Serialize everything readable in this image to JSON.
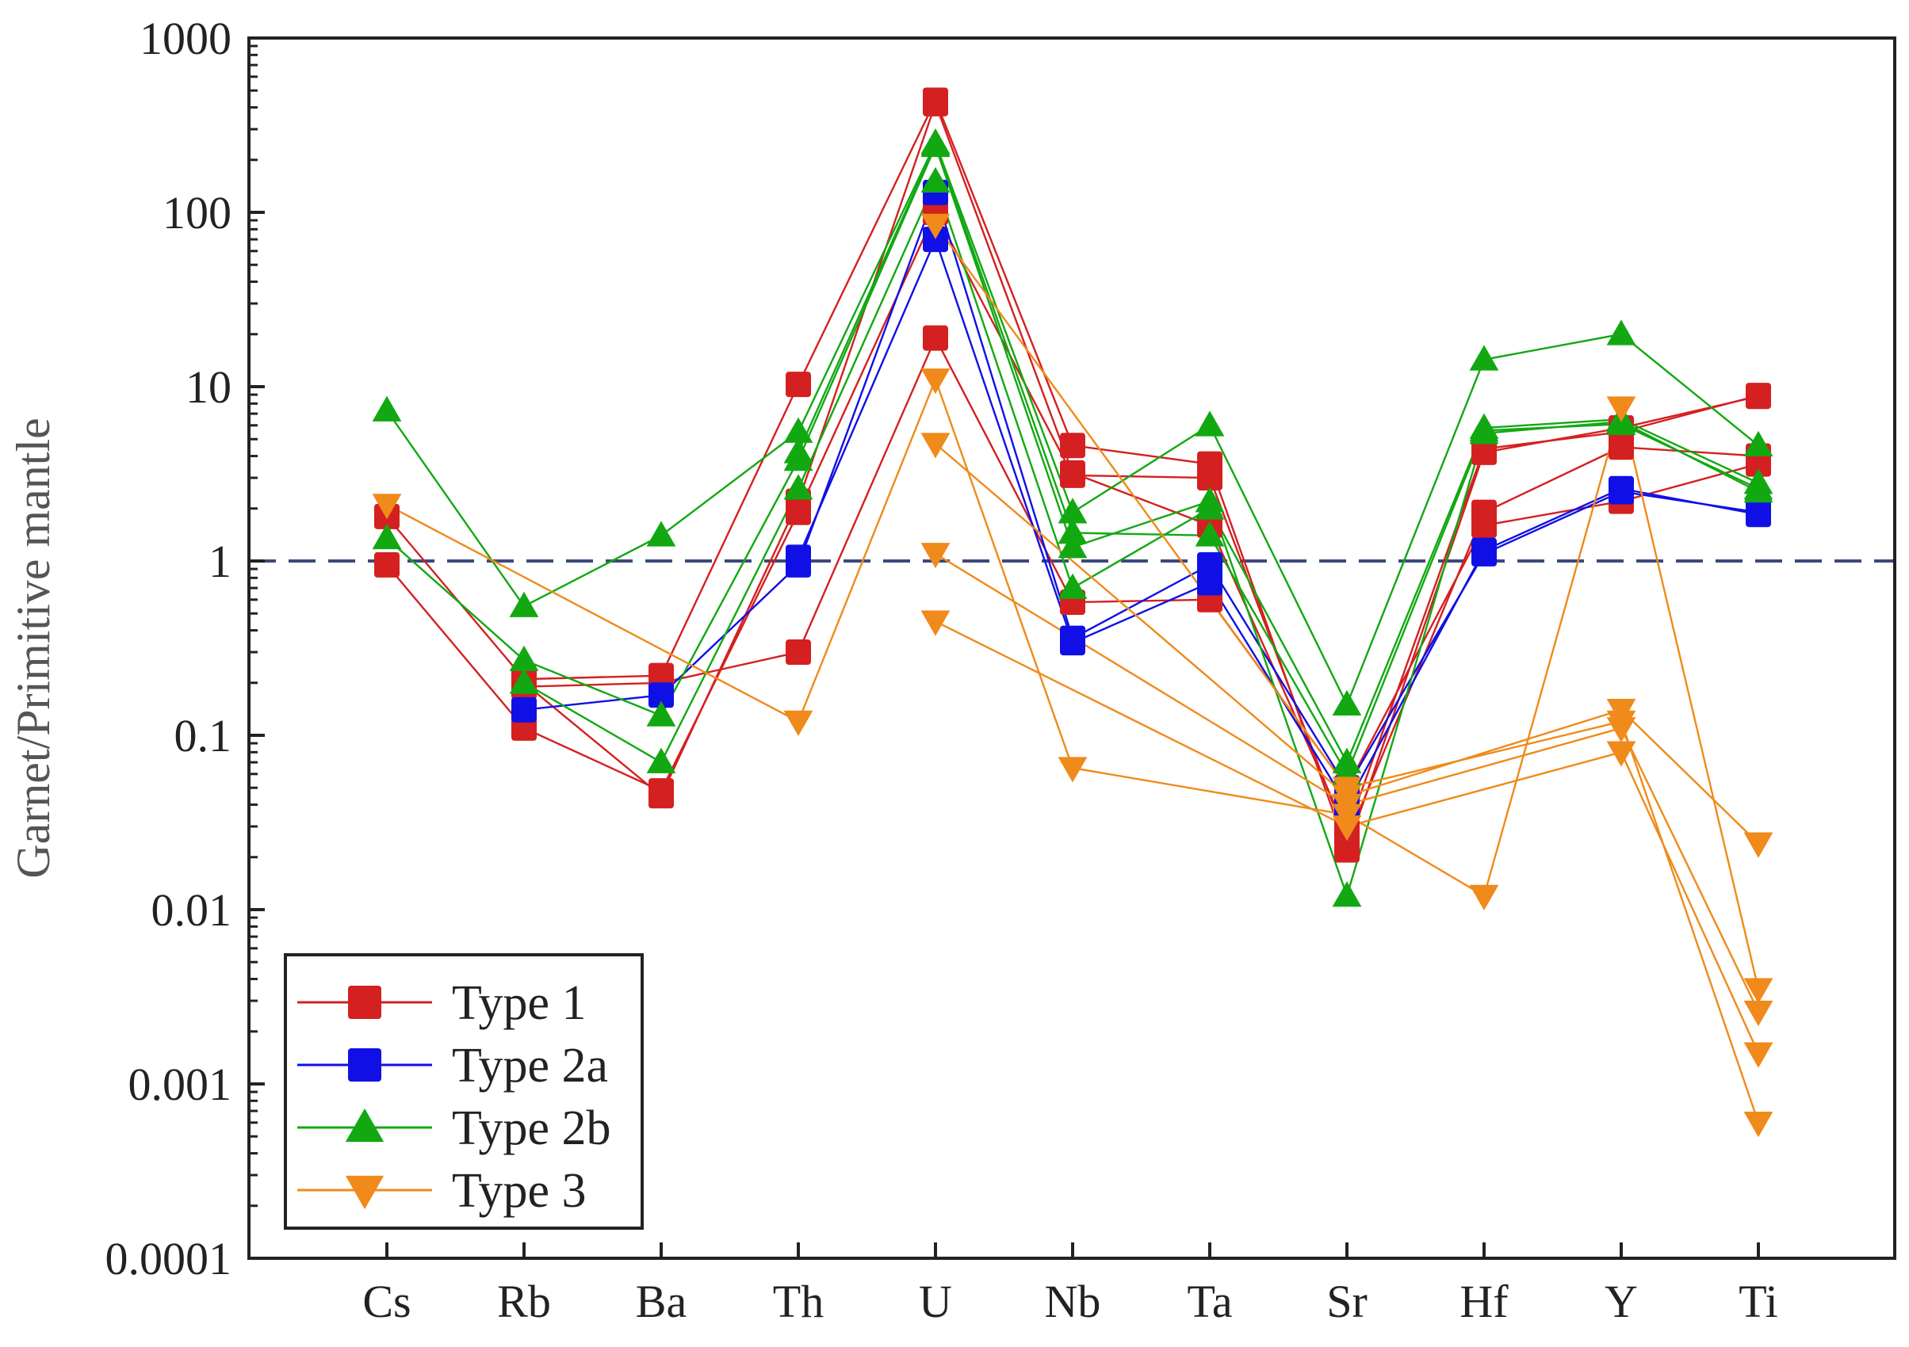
{
  "chart_data": {
    "type": "line",
    "ylabel": "Garnet/Primitive mantle",
    "xlabel": "",
    "yscale": "log",
    "ylim": [
      0.0001,
      1000
    ],
    "yticks": [
      {
        "value": 1000,
        "label": "1000"
      },
      {
        "value": 100,
        "label": "100"
      },
      {
        "value": 10,
        "label": "10"
      },
      {
        "value": 1,
        "label": "1"
      },
      {
        "value": 0.1,
        "label": "0.1"
      },
      {
        "value": 0.01,
        "label": "0.01"
      },
      {
        "value": 0.001,
        "label": "0.001"
      },
      {
        "value": 0.0001,
        "label": "0.0001"
      }
    ],
    "categories": [
      "Cs",
      "Rb",
      "Ba",
      "Th",
      "U",
      "Nb",
      "Ta",
      "Sr",
      "Hf",
      "Y",
      "Ti"
    ],
    "reference_line": {
      "value": 1,
      "style": "dashed",
      "color": "#3b4a7a"
    },
    "legend": {
      "placement": "bottom-left",
      "entries": [
        {
          "label": "Type 1",
          "color": "#d42020",
          "marker": "square"
        },
        {
          "label": "Type 2a",
          "color": "#1010e6",
          "marker": "square"
        },
        {
          "label": "Type 2b",
          "color": "#12a812",
          "marker": "triangle-up"
        },
        {
          "label": "Type 3",
          "color": "#f08a1a",
          "marker": "triangle-down"
        }
      ]
    },
    "series": [
      {
        "group": "Type 1",
        "values": [
          1.8,
          0.21,
          0.22,
          10.3,
          440,
          4.6,
          3.6,
          0.022,
          4.2,
          5.8,
          8.8
        ]
      },
      {
        "group": "Type 1",
        "values": [
          0.95,
          0.11,
          0.048,
          1.9,
          100,
          3.1,
          3.0,
          0.025,
          1.9,
          4.5,
          4.0
        ]
      },
      {
        "group": "Type 1",
        "values": [
          null,
          0.19,
          0.2,
          0.3,
          19,
          0.58,
          0.6,
          0.05,
          1.6,
          2.2,
          3.6
        ]
      },
      {
        "group": "Type 1",
        "values": [
          null,
          0.2,
          0.045,
          2.2,
          420,
          3.2,
          1.6,
          0.028,
          4.4,
          5.5,
          8.9
        ]
      },
      {
        "group": "Type 2a",
        "values": [
          null,
          0.14,
          0.17,
          0.95,
          130,
          0.36,
          0.95,
          0.05,
          1.1,
          2.5,
          1.9
        ]
      },
      {
        "group": "Type 2a",
        "values": [
          null,
          null,
          null,
          1.05,
          70,
          0.34,
          0.75,
          0.04,
          1.15,
          2.6,
          1.85
        ]
      },
      {
        "group": "Type 2b",
        "values": [
          7.3,
          0.55,
          1.4,
          5.5,
          250,
          1.9,
          6.0,
          0.15,
          14.3,
          20,
          4.6
        ]
      },
      {
        "group": "Type 2b",
        "values": [
          1.35,
          0.27,
          0.13,
          3.8,
          240,
          1.2,
          2.2,
          0.012,
          5.4,
          6.3,
          2.5
        ]
      },
      {
        "group": "Type 2b",
        "values": [
          null,
          0.2,
          0.07,
          2.6,
          150,
          0.7,
          2.0,
          0.07,
          5.8,
          6.5,
          2.8
        ]
      },
      {
        "group": "Type 2b",
        "values": [
          null,
          null,
          null,
          4.2,
          245,
          1.45,
          1.4,
          0.06,
          5.6,
          6.1,
          2.6
        ]
      },
      {
        "group": "Type 3",
        "values": [
          2.1,
          null,
          null,
          0.12,
          11,
          0.065,
          null,
          0.035,
          0.012,
          7.6,
          0.0035
        ]
      },
      {
        "group": "Type 3",
        "values": [
          null,
          null,
          null,
          null,
          4.7,
          null,
          null,
          0.045,
          null,
          0.14,
          0.024
        ]
      },
      {
        "group": "Type 3",
        "values": [
          null,
          null,
          null,
          null,
          1.1,
          null,
          null,
          0.04,
          null,
          0.11,
          0.0026
        ]
      },
      {
        "group": "Type 3",
        "values": [
          null,
          null,
          null,
          null,
          0.45,
          null,
          null,
          0.03,
          null,
          0.08,
          0.0015
        ]
      },
      {
        "group": "Type 3",
        "values": [
          null,
          null,
          null,
          null,
          85,
          null,
          null,
          0.05,
          null,
          0.12,
          0.0006
        ]
      }
    ]
  }
}
